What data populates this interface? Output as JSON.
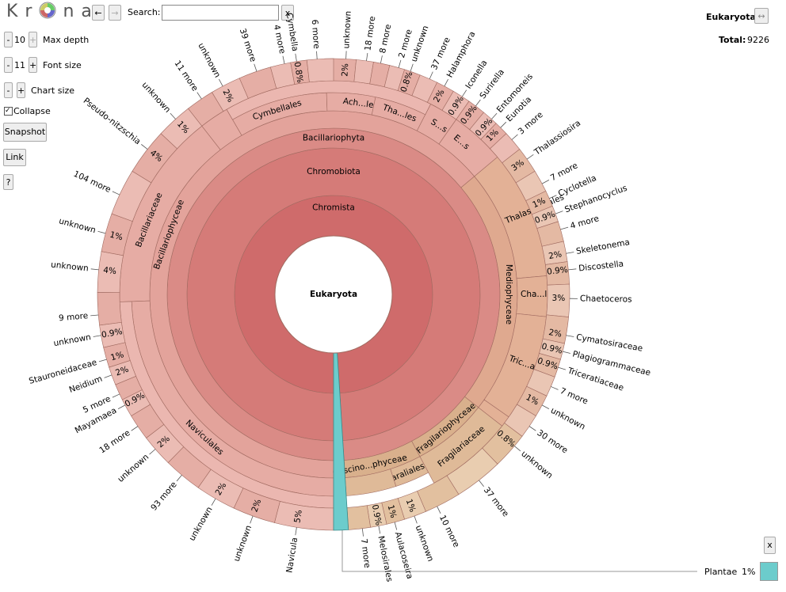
{
  "toolbar": {
    "logo_left": "Kr",
    "logo_right": "na",
    "back": "←",
    "forward": "→",
    "search_label": "Search:",
    "search_clear": "x",
    "max_depth": {
      "minus": "-",
      "value": "10",
      "plus": "+",
      "label": "Max depth"
    },
    "font_size": {
      "minus": "-",
      "value": "11",
      "plus": "+",
      "label": "Font size"
    },
    "chart_size": {
      "minus": "-",
      "plus": "+",
      "label": "Chart size"
    },
    "collapse": "Collapse",
    "snapshot": "Snapshot",
    "link": "Link",
    "help": "?"
  },
  "details": {
    "name": "Eukaryota",
    "expand": "↔",
    "total_label": "Total:",
    "total": "9226"
  },
  "chart": {
    "root": "Eukaryota",
    "rings": [
      "Chromista",
      "Chromobiota",
      "Bacillariophyta",
      "Bacillariophyceae",
      "Mediophyceae",
      "Fragilariophyceae",
      "Coscino...phyceae",
      "Bacillariaceae",
      "Naviculales",
      "Cymbellales",
      "Ach...les",
      "Tha...les",
      "S...s",
      "E...s",
      "Thalass...siales",
      "Cha...les",
      "Tric...ales",
      "Fragilariaceae",
      "Paraliales"
    ],
    "leaves": [
      {
        "label": "unknown",
        "pct": "2%"
      },
      {
        "label": "18 more"
      },
      {
        "label": "8 more"
      },
      {
        "label": "2 more"
      },
      {
        "label": "unknown",
        "pct": "0.8%"
      },
      {
        "label": "37 more"
      },
      {
        "label": "Halamphora",
        "pct": "2%"
      },
      {
        "label": "Iconella",
        "pct": "0.9%"
      },
      {
        "label": "Surirella",
        "pct": "0.9%"
      },
      {
        "label": "Entomoneis",
        "pct": "0.9%"
      },
      {
        "label": "Eunotia",
        "pct": "1%"
      },
      {
        "label": "3 more"
      },
      {
        "label": "Thalassiosira",
        "pct": "3%"
      },
      {
        "label": "7 more"
      },
      {
        "label": "Cyclotella",
        "pct": "1%"
      },
      {
        "label": "Stephanocyclus",
        "pct": "0.9%"
      },
      {
        "label": "4 more"
      },
      {
        "label": "Skeletonema",
        "pct": "2%"
      },
      {
        "label": "Discostella",
        "pct": "0.9%"
      },
      {
        "label": "Chaetoceros",
        "pct": "3%"
      },
      {
        "label": "Cymatosiraceae",
        "pct": "2%"
      },
      {
        "label": "Plagiogrammaceae",
        "pct": "0.9%"
      },
      {
        "label": "Triceratiaceae",
        "pct": "0.9%"
      },
      {
        "label": "7 more"
      },
      {
        "label": "unknown",
        "pct": "1%"
      },
      {
        "label": "30 more"
      },
      {
        "label": "unknown",
        "pct": "0.8%"
      },
      {
        "label": "37 more"
      },
      {
        "label": "10 more"
      },
      {
        "label": "unknown",
        "pct": "1%"
      },
      {
        "label": "Aulacoseira",
        "pct": "1%"
      },
      {
        "label": "Melosirales",
        "pct": "0.9%"
      },
      {
        "label": "7 more"
      },
      {
        "label": "Navicula",
        "pct": "5%"
      },
      {
        "label": "unknown",
        "pct": "2%"
      },
      {
        "label": "unknown",
        "pct": "2%"
      },
      {
        "label": "93 more"
      },
      {
        "label": "unknown",
        "pct": "2%"
      },
      {
        "label": "18 more"
      },
      {
        "label": "Mayamaea",
        "pct": "0.9%"
      },
      {
        "label": "5 more"
      },
      {
        "label": "Neidium",
        "pct": "2%"
      },
      {
        "label": "Stauroneidaceae",
        "pct": "1%"
      },
      {
        "label": "unknown",
        "pct": "0.9%"
      },
      {
        "label": "9 more"
      },
      {
        "label": "unknown",
        "pct": "4%"
      },
      {
        "label": "unknown",
        "pct": "1%"
      },
      {
        "label": "104 more"
      },
      {
        "label": "Pseudo-nitzschia",
        "pct": "4%"
      },
      {
        "label": "unknown",
        "pct": "1%"
      },
      {
        "label": "11 more"
      },
      {
        "label": "unknown",
        "pct": "2%"
      },
      {
        "label": "39 more"
      },
      {
        "label": "4 more"
      },
      {
        "label": "Cymbella",
        "pct": "0.8%"
      },
      {
        "label": "6 more"
      }
    ]
  },
  "legend": {
    "close": "x",
    "name": "Plantae",
    "pct": "1%"
  }
}
